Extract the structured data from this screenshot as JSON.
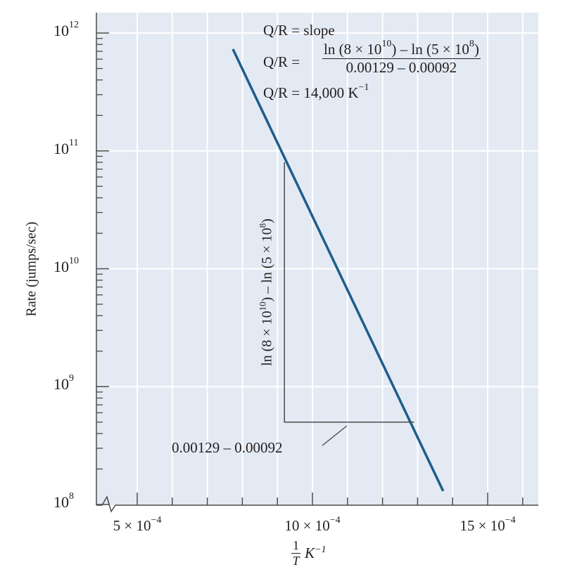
{
  "chart_data": {
    "type": "line",
    "title": "",
    "xlabel": {
      "fraction_numerator": "1",
      "fraction_denominator": "T",
      "unit": "K",
      "unit_exp": "−1"
    },
    "ylabel": "Rate (jumps/sec)",
    "x_unit_note": "×10^-4",
    "xlim": [
      3.85,
      16.45
    ],
    "ylim": [
      100000000.0,
      1500000000000.0
    ],
    "y_scale": "log",
    "grid": true,
    "x_axis_break": true,
    "x_ticks": [
      {
        "value": 5,
        "base": "5 × 10",
        "exp": "−4"
      },
      {
        "value": 10,
        "base": "10 × 10",
        "exp": "−4"
      },
      {
        "value": 15,
        "base": "15 × 10",
        "exp": "−4"
      }
    ],
    "y_ticks": [
      {
        "value": 8,
        "base": "10",
        "exp": "8"
      },
      {
        "value": 9,
        "base": "10",
        "exp": "9"
      },
      {
        "value": 10,
        "base": "10",
        "exp": "10"
      },
      {
        "value": 11,
        "base": "10",
        "exp": "11"
      },
      {
        "value": 12,
        "base": "10",
        "exp": "12"
      }
    ],
    "series": [
      {
        "x": [
          7.73,
          13.73
        ],
        "y": [
          730000000000.0,
          130000000.0
        ],
        "color": "#1f5d8c"
      }
    ],
    "slope_triangle": {
      "x1": 9.2,
      "x2": 12.9,
      "y1": 500000000.0,
      "y2": 80000000000.0,
      "color": "#4a4a4a"
    },
    "annotations": {
      "line1": "Q/R = slope",
      "line2_prefix": "Q/R =",
      "numerator": [
        "ln (8 × 10",
        "10",
        ") – ln (5 × 10",
        "8",
        ")"
      ],
      "denominator": "0.00129 – 0.00092",
      "line3": "Q/R = 14,000 K",
      "line3_exp": "−1",
      "vertical_label": [
        "ln (8 × 10",
        "10",
        ") – ln (5 × 10",
        "8",
        ")"
      ],
      "horizontal_label": "0.00129 – 0.00092"
    },
    "colors": {
      "background": "#e3eaf3",
      "grid": "#ffffff",
      "axis": "#4a4a4a",
      "line": "#1f5d8c"
    }
  }
}
